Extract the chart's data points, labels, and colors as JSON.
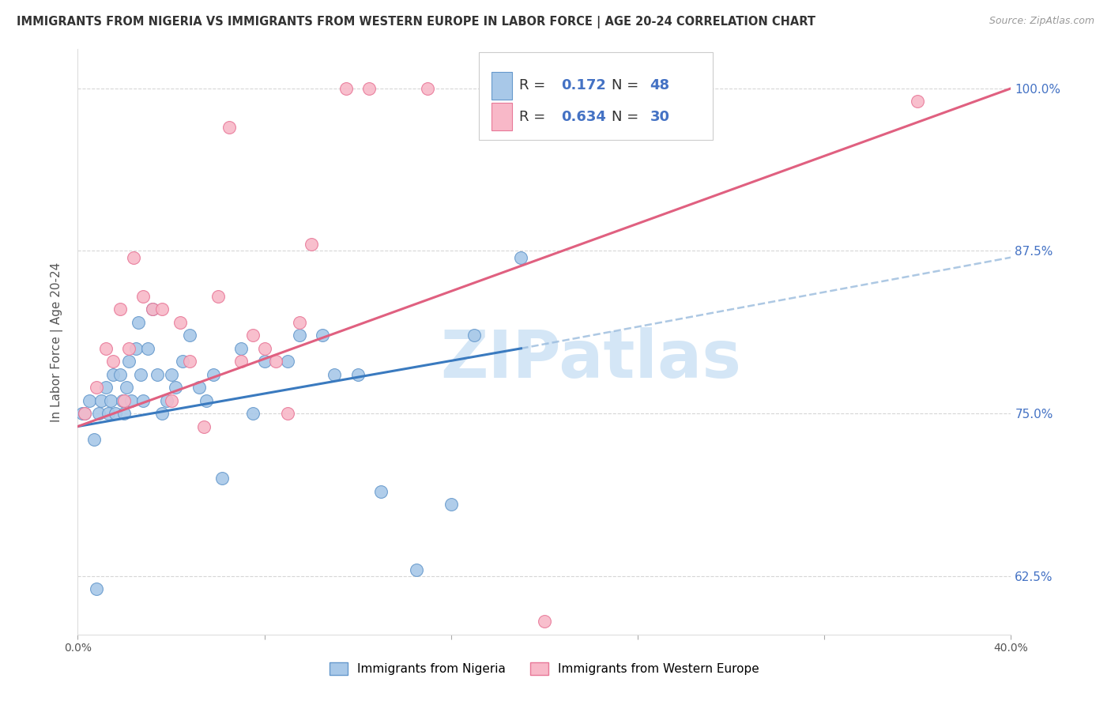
{
  "title": "IMMIGRANTS FROM NIGERIA VS IMMIGRANTS FROM WESTERN EUROPE IN LABOR FORCE | AGE 20-24 CORRELATION CHART",
  "source": "Source: ZipAtlas.com",
  "ylabel": "In Labor Force | Age 20-24",
  "xlim": [
    0.0,
    0.4
  ],
  "ylim": [
    0.58,
    1.03
  ],
  "xticks": [
    0.0,
    0.08,
    0.16,
    0.24,
    0.32,
    0.4
  ],
  "xticklabels": [
    "0.0%",
    "",
    "",
    "",
    "",
    "40.0%"
  ],
  "yticks": [
    0.625,
    0.75,
    0.875,
    1.0
  ],
  "yticklabels": [
    "62.5%",
    "75.0%",
    "87.5%",
    "100.0%"
  ],
  "nigeria_color": "#a8c8e8",
  "nigeria_edge": "#6699cc",
  "western_europe_color": "#f8b8c8",
  "western_europe_edge": "#e87898",
  "nigeria_R": 0.172,
  "nigeria_N": 48,
  "western_europe_R": 0.634,
  "western_europe_N": 30,
  "nigeria_scatter_x": [
    0.002,
    0.005,
    0.007,
    0.009,
    0.01,
    0.012,
    0.013,
    0.014,
    0.015,
    0.016,
    0.018,
    0.019,
    0.02,
    0.021,
    0.022,
    0.023,
    0.025,
    0.026,
    0.027,
    0.028,
    0.03,
    0.032,
    0.034,
    0.036,
    0.038,
    0.04,
    0.042,
    0.045,
    0.048,
    0.052,
    0.055,
    0.058,
    0.062,
    0.07,
    0.075,
    0.08,
    0.09,
    0.095,
    0.105,
    0.11,
    0.12,
    0.13,
    0.145,
    0.16,
    0.17,
    0.19,
    0.003,
    0.008
  ],
  "nigeria_scatter_y": [
    0.75,
    0.76,
    0.73,
    0.75,
    0.76,
    0.77,
    0.75,
    0.76,
    0.78,
    0.75,
    0.78,
    0.76,
    0.75,
    0.77,
    0.79,
    0.76,
    0.8,
    0.82,
    0.78,
    0.76,
    0.8,
    0.83,
    0.78,
    0.75,
    0.76,
    0.78,
    0.77,
    0.79,
    0.81,
    0.77,
    0.76,
    0.78,
    0.7,
    0.8,
    0.75,
    0.79,
    0.79,
    0.81,
    0.81,
    0.78,
    0.78,
    0.69,
    0.63,
    0.68,
    0.81,
    0.87,
    0.75,
    0.615
  ],
  "western_europe_scatter_x": [
    0.003,
    0.008,
    0.012,
    0.015,
    0.018,
    0.02,
    0.022,
    0.024,
    0.028,
    0.032,
    0.036,
    0.04,
    0.044,
    0.048,
    0.054,
    0.06,
    0.065,
    0.07,
    0.075,
    0.08,
    0.085,
    0.09,
    0.095,
    0.1,
    0.115,
    0.125,
    0.15,
    0.175,
    0.2,
    0.36
  ],
  "western_europe_scatter_y": [
    0.75,
    0.77,
    0.8,
    0.79,
    0.83,
    0.76,
    0.8,
    0.87,
    0.84,
    0.83,
    0.83,
    0.76,
    0.82,
    0.79,
    0.74,
    0.84,
    0.97,
    0.79,
    0.81,
    0.8,
    0.79,
    0.75,
    0.82,
    0.88,
    1.0,
    1.0,
    1.0,
    1.0,
    0.59,
    0.99
  ],
  "nigeria_line_color": "#3a7abf",
  "nigeria_line_x0": 0.0,
  "nigeria_line_x1": 0.19,
  "nigeria_line_y0": 0.74,
  "nigeria_line_y1": 0.8,
  "western_europe_line_color": "#e06080",
  "western_europe_line_x0": 0.0,
  "western_europe_line_x1": 0.4,
  "western_europe_line_y0": 0.74,
  "western_europe_line_y1": 1.0,
  "dashed_line_x0": 0.19,
  "dashed_line_x1": 0.4,
  "dashed_line_y0": 0.8,
  "dashed_line_y1": 0.87,
  "dashed_color": "#99bbdd",
  "background_color": "#ffffff",
  "grid_color": "#cccccc",
  "title_fontsize": 10.5,
  "axis_label_fontsize": 11,
  "tick_fontsize": 10,
  "legend_fontsize": 12,
  "scatter_size": 130,
  "zipatlas_text": "ZIPatlas",
  "zipatlas_color": "#d0e4f5"
}
